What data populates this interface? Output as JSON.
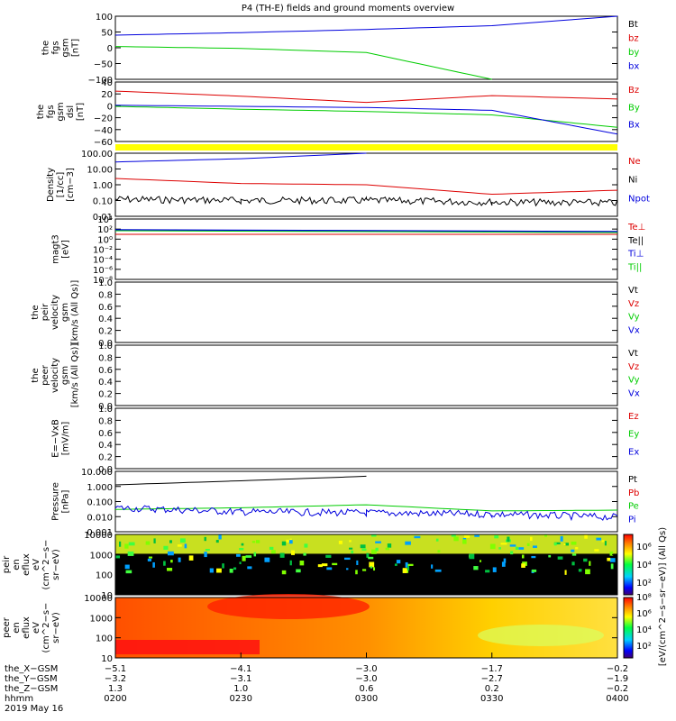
{
  "title": "P4 (TH-E) fields and ground moments overview",
  "colors": {
    "black": "#000000",
    "red": "#dd0000",
    "green": "#00cc00",
    "blue": "#0000dd",
    "yellow": "#ffff00"
  },
  "panels": [
    {
      "id": "fgs-gsm",
      "ylabel": [
        "the",
        "fgs",
        "gsm",
        "[nT]"
      ],
      "ticks": [
        "100",
        "50",
        "0",
        "−50",
        "−100"
      ],
      "legend": [
        {
          "text": "Bt",
          "color": "black"
        },
        {
          "text": "bz",
          "color": "red"
        },
        {
          "text": "by",
          "color": "green"
        },
        {
          "text": "bx",
          "color": "blue"
        }
      ]
    },
    {
      "id": "fgs-dsl",
      "ylabel": [
        "the",
        "fgs",
        "gsm",
        "dsl",
        "[nT]"
      ],
      "ticks": [
        "40",
        "20",
        "0",
        "−20",
        "−40",
        "−60"
      ],
      "legend": [
        {
          "text": "Bz",
          "color": "red"
        },
        {
          "text": "By",
          "color": "green"
        },
        {
          "text": "Bx",
          "color": "blue"
        }
      ]
    },
    {
      "id": "density",
      "ylabel": [
        "Density",
        "[1/cc]",
        "[cm−3]"
      ],
      "ticks": [
        "100.00",
        "10.00",
        "1.00",
        "0.10",
        "0.01"
      ],
      "legend": [
        {
          "text": "Ne",
          "color": "red"
        },
        {
          "text": "Ni",
          "color": "black"
        },
        {
          "text": "Npot",
          "color": "blue"
        }
      ]
    },
    {
      "id": "temperature",
      "ylabel": [
        "magt3",
        "[eV]"
      ],
      "ticks": [
        "10⁴",
        "10²",
        "10⁰",
        "10⁻²",
        "10⁻⁴",
        "10⁻⁶",
        "10⁻⁸"
      ],
      "legend": [
        {
          "text": "Te⊥",
          "color": "red"
        },
        {
          "text": "Te||",
          "color": "black"
        },
        {
          "text": "Ti⊥",
          "color": "blue"
        },
        {
          "text": "Ti||",
          "color": "green"
        }
      ]
    },
    {
      "id": "peir-velocity",
      "ylabel": [
        "the",
        "peir",
        "velocity",
        "gsm",
        "[km/s (All Qs)]"
      ],
      "ticks": [
        "1.0",
        "0.8",
        "0.6",
        "0.4",
        "0.2",
        "0.0"
      ],
      "legend": [
        {
          "text": "Vt",
          "color": "black"
        },
        {
          "text": "Vz",
          "color": "red"
        },
        {
          "text": "Vy",
          "color": "green"
        },
        {
          "text": "Vx",
          "color": "blue"
        }
      ]
    },
    {
      "id": "peer-velocity",
      "ylabel": [
        "the",
        "peer",
        "velocity",
        "gsm",
        "[km/s (All Qs)]"
      ],
      "ticks": [
        "1.0",
        "0.8",
        "0.6",
        "0.4",
        "0.2",
        "0.0"
      ],
      "legend": [
        {
          "text": "Vt",
          "color": "black"
        },
        {
          "text": "Vz",
          "color": "red"
        },
        {
          "text": "Vy",
          "color": "green"
        },
        {
          "text": "Vx",
          "color": "blue"
        }
      ]
    },
    {
      "id": "efield",
      "ylabel": [
        "E=−VxB",
        "[mV/m]"
      ],
      "ticks": [
        "1.0",
        "0.8",
        "0.6",
        "0.4",
        "0.2",
        "0.0"
      ],
      "legend": [
        {
          "text": "Ez",
          "color": "red"
        },
        {
          "text": "Ey",
          "color": "green"
        },
        {
          "text": "Ex",
          "color": "blue"
        }
      ]
    },
    {
      "id": "pressure",
      "ylabel": [
        "Pressure",
        "[nPa]"
      ],
      "ticks": [
        "10.000",
        "1.000",
        "0.100",
        "0.010",
        "0.001"
      ],
      "legend": [
        {
          "text": "Pt",
          "color": "black"
        },
        {
          "text": "Pb",
          "color": "red"
        },
        {
          "text": "Pe",
          "color": "green"
        },
        {
          "text": "Pi",
          "color": "blue"
        }
      ]
    },
    {
      "id": "peir-eflux",
      "ylabel": [
        "the",
        "peir",
        "en",
        "eflux",
        "eV",
        "(cm^2−s−",
        "sr−eV)"
      ],
      "ticks": [
        "10000",
        "1000",
        "100",
        "10"
      ],
      "legend": []
    },
    {
      "id": "peer-eflux",
      "ylabel": [
        "the",
        "peer",
        "en",
        "eflux",
        "eV",
        "(cm^2−s−",
        "sr−eV)"
      ],
      "ticks": [
        "10000",
        "1000",
        "100",
        "10"
      ],
      "legend": []
    }
  ],
  "colorbars": {
    "upper_ticks": [
      "10⁶",
      "10⁴",
      "10²"
    ],
    "lower_ticks": [
      "10⁸",
      "10⁶",
      "10⁴",
      "10²"
    ],
    "label": "[eV/(cm^2−s−sr−eV)] (All Qs)"
  },
  "xaxis": {
    "row_labels": [
      "the_X−GSM",
      "the_Y−GSM",
      "the_Z−GSM",
      "hhmm",
      "2019 May 16"
    ],
    "columns": [
      {
        "x": "−5.1",
        "y": "−3.2",
        "z": "1.3",
        "t": "0200"
      },
      {
        "x": "−4.1",
        "y": "−3.1",
        "z": "1.0",
        "t": "0230"
      },
      {
        "x": "−3.0",
        "y": "−3.0",
        "z": "0.6",
        "t": "0300"
      },
      {
        "x": "−1.7",
        "y": "−2.7",
        "z": "0.2",
        "t": "0330"
      },
      {
        "x": "−0.2",
        "y": "−1.9",
        "z": "−0.2",
        "t": "0400"
      }
    ]
  },
  "chart_data": {
    "type": "line",
    "title": "P4 (TH-E) fields and ground moments overview",
    "x_time": [
      "0200",
      "0230",
      "0300",
      "0330",
      "0400"
    ],
    "x_date": "2019 May 16",
    "panels": [
      {
        "name": "fgs gsm",
        "ylim": [
          -100,
          100
        ],
        "series": [
          {
            "name": "Bt",
            "values": [
              null,
              null,
              null,
              null,
              null
            ]
          },
          {
            "name": "bz",
            "values": [
              null,
              null,
              null,
              null,
              null
            ]
          },
          {
            "name": "by",
            "values": [
              4,
              -2,
              -15,
              -100,
              null
            ]
          },
          {
            "name": "bx",
            "values": [
              40,
              48,
              58,
              70,
              100
            ]
          }
        ]
      },
      {
        "name": "fgs dsl",
        "ylim": [
          -65,
          40
        ],
        "series": [
          {
            "name": "Bz",
            "values": [
              24,
              15,
              4,
              16,
              10
            ]
          },
          {
            "name": "By",
            "values": [
              -3,
              -8,
              -12,
              -18,
              -40
            ]
          },
          {
            "name": "Bx",
            "values": [
              -1,
              -3,
              -5,
              -10,
              -52
            ]
          }
        ]
      },
      {
        "name": "Density",
        "ylim": [
          0.01,
          100
        ],
        "log": true,
        "series": [
          {
            "name": "Ne",
            "values": [
              2.5,
              1.2,
              1.0,
              0.25,
              0.45
            ]
          },
          {
            "name": "Ni",
            "values": [
              0.12,
              0.1,
              0.1,
              0.08,
              0.07
            ]
          },
          {
            "name": "Npot",
            "values": [
              28,
              45,
              100,
              null,
              null
            ]
          }
        ]
      },
      {
        "name": "Pressure",
        "ylim": [
          0.001,
          30
        ],
        "log": true,
        "series": [
          {
            "name": "Pt",
            "values": [
              3,
              6,
              13,
              null,
              null
            ]
          },
          {
            "name": "Pe",
            "values": [
              0.045,
              0.06,
              0.1,
              0.035,
              0.04
            ]
          },
          {
            "name": "Pi",
            "values": [
              0.06,
              0.03,
              0.025,
              0.02,
              0.012
            ]
          }
        ]
      }
    ],
    "spectrograms": [
      {
        "name": "peir en eflux",
        "ylim": [
          10,
          30000
        ],
        "log": true
      },
      {
        "name": "peer en eflux",
        "ylim": [
          5,
          30000
        ],
        "log": true
      }
    ],
    "colorbar_label": "[eV/(cm^2−s−sr−eV)] (All Qs)"
  }
}
